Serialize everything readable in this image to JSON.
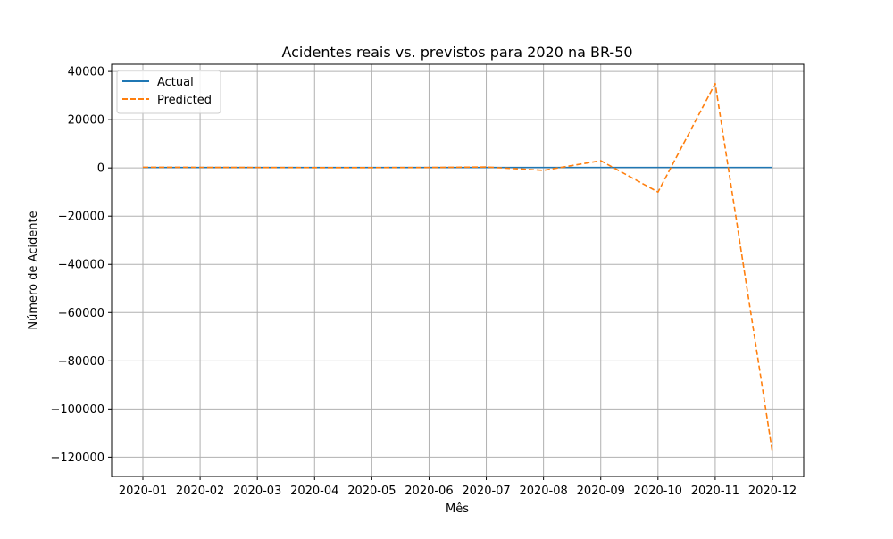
{
  "chart_data": {
    "type": "line",
    "title": "Acidentes reais vs. previstos para 2020 na BR-50",
    "xlabel": "Mês",
    "ylabel": "Número de Acidente",
    "categories": [
      "2020-01",
      "2020-02",
      "2020-03",
      "2020-04",
      "2020-05",
      "2020-06",
      "2020-07",
      "2020-08",
      "2020-09",
      "2020-10",
      "2020-11",
      "2020-12"
    ],
    "series": [
      {
        "name": "Actual",
        "color": "#1f77b4",
        "style": "solid",
        "values": [
          200,
          200,
          200,
          200,
          200,
          200,
          200,
          200,
          200,
          200,
          200,
          200
        ]
      },
      {
        "name": "Predicted",
        "color": "#ff7f0e",
        "style": "dashed",
        "values": [
          300,
          250,
          200,
          150,
          150,
          200,
          400,
          -1000,
          3000,
          -10000,
          35000,
          -118000
        ]
      }
    ],
    "ylim": [
      -128000,
      43000
    ],
    "yticks": [
      40000,
      20000,
      0,
      -20000,
      -40000,
      -60000,
      -80000,
      -100000,
      -120000
    ],
    "ytick_labels": [
      "40000",
      "20000",
      "0",
      "−20000",
      "−40000",
      "−60000",
      "−80000",
      "−100000",
      "−120000"
    ],
    "grid": true,
    "legend_position": "upper-left"
  }
}
